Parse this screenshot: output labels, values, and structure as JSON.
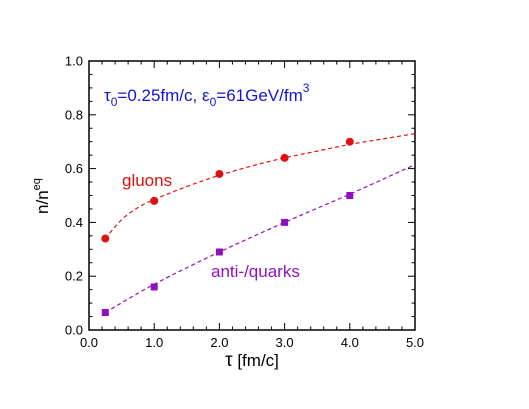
{
  "chart_data": {
    "type": "scatter",
    "xlabel_symbol": "τ",
    "xlabel_unit": " [fm/c]",
    "ylabel_base": "n/n",
    "ylabel_sup": "eq",
    "xlim": [
      0.0,
      5.0
    ],
    "ylim": [
      0.0,
      1.0
    ],
    "x_ticks": [
      "0.0",
      "1.0",
      "2.0",
      "3.0",
      "4.0",
      "5.0"
    ],
    "y_ticks": [
      "0.0",
      "0.2",
      "0.4",
      "0.6",
      "0.8",
      "1.0"
    ],
    "params": {
      "tau_sym": "τ",
      "tau_sub": "0",
      "tau_val": "=0.25fm/c, ",
      "eps_sym": "ε",
      "eps_sub": "0",
      "eps_val": "=61GeV/fm",
      "eps_sup": "3",
      "color": "#1515d0"
    },
    "grid": false,
    "series": [
      {
        "name": "gluons",
        "color": "#e01010",
        "marker": "circle",
        "x": [
          0.25,
          1.0,
          2.0,
          3.0,
          4.0
        ],
        "y": [
          0.34,
          0.48,
          0.58,
          0.64,
          0.7
        ],
        "fit": {
          "x": [
            0.25,
            0.5,
            0.75,
            1.0,
            1.25,
            1.5,
            1.75,
            2.0,
            2.5,
            3.0,
            3.5,
            4.0,
            4.5,
            5.0
          ],
          "y": [
            0.34,
            0.41,
            0.455,
            0.485,
            0.51,
            0.533,
            0.555,
            0.575,
            0.61,
            0.64,
            0.665,
            0.69,
            0.71,
            0.73
          ]
        }
      },
      {
        "name": "anti-/quarks",
        "color": "#9010c0",
        "marker": "square",
        "x": [
          0.25,
          1.0,
          2.0,
          3.0,
          4.0
        ],
        "y": [
          0.065,
          0.16,
          0.29,
          0.4,
          0.5
        ],
        "fit": {
          "x": [
            0.25,
            1.0,
            2.0,
            3.0,
            4.0,
            5.0
          ],
          "y": [
            0.065,
            0.17,
            0.29,
            0.4,
            0.505,
            0.615
          ]
        }
      }
    ]
  }
}
